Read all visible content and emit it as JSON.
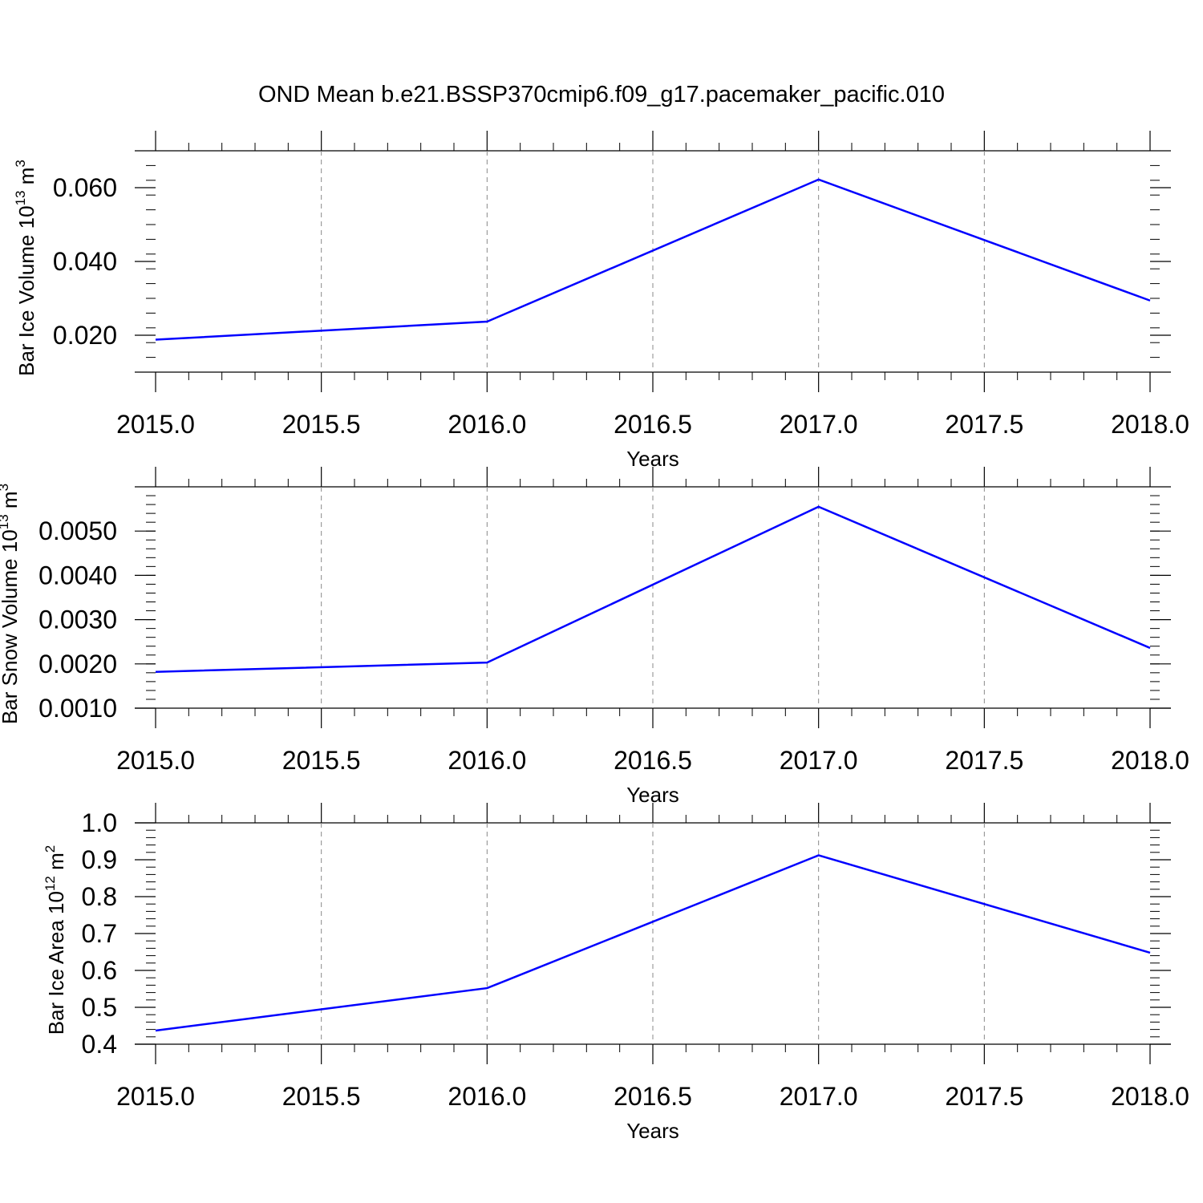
{
  "title": "OND Mean b.e21.BSSP370cmip6.f09_g17.pacemaker_pacific.010",
  "colors": {
    "line": "#0000ff",
    "axis": "#000000",
    "grid": "#888888"
  },
  "chart_data": [
    {
      "type": "line",
      "xlabel": "Years",
      "ylabel": {
        "text": "Bar Ice Volume 10",
        "exponent": "13",
        "unit": "m",
        "unit_exponent": "3"
      },
      "xlim": [
        2015.0,
        2018.0
      ],
      "ylim": [
        0.01,
        0.07
      ],
      "x_ticks": [
        "2015.0",
        "2015.5",
        "2016.0",
        "2016.5",
        "2017.0",
        "2017.5",
        "2018.0"
      ],
      "y_ticks": [
        "0.020",
        "0.040",
        "0.060"
      ],
      "grid": "vertical dashed",
      "x": [
        2015,
        2016,
        2017,
        2018
      ],
      "values": [
        0.0188,
        0.0237,
        0.0622,
        0.0294
      ]
    },
    {
      "type": "line",
      "xlabel": "Years",
      "ylabel": {
        "text": "Bar Snow Volume 10",
        "exponent": "13",
        "unit": "m",
        "unit_exponent": "3"
      },
      "xlim": [
        2015.0,
        2018.0
      ],
      "ylim": [
        0.001,
        0.006
      ],
      "x_ticks": [
        "2015.0",
        "2015.5",
        "2016.0",
        "2016.5",
        "2017.0",
        "2017.5",
        "2018.0"
      ],
      "y_ticks": [
        "0.0010",
        "0.0020",
        "0.0030",
        "0.0040",
        "0.0050"
      ],
      "grid": "vertical dashed",
      "x": [
        2015,
        2016,
        2017,
        2018
      ],
      "values": [
        0.00182,
        0.00203,
        0.00555,
        0.00236
      ]
    },
    {
      "type": "line",
      "xlabel": "Years",
      "ylabel": {
        "text": "Bar Ice Area 10",
        "exponent": "12",
        "unit": "m",
        "unit_exponent": "2"
      },
      "xlim": [
        2015.0,
        2018.0
      ],
      "ylim": [
        0.4,
        1.0
      ],
      "x_ticks": [
        "2015.0",
        "2015.5",
        "2016.0",
        "2016.5",
        "2017.0",
        "2017.5",
        "2018.0"
      ],
      "y_ticks": [
        "0.4",
        "0.5",
        "0.6",
        "0.7",
        "0.8",
        "0.9",
        "1.0"
      ],
      "grid": "vertical dashed",
      "x": [
        2015,
        2016,
        2017,
        2018
      ],
      "values": [
        0.437,
        0.552,
        0.912,
        0.648
      ]
    }
  ]
}
